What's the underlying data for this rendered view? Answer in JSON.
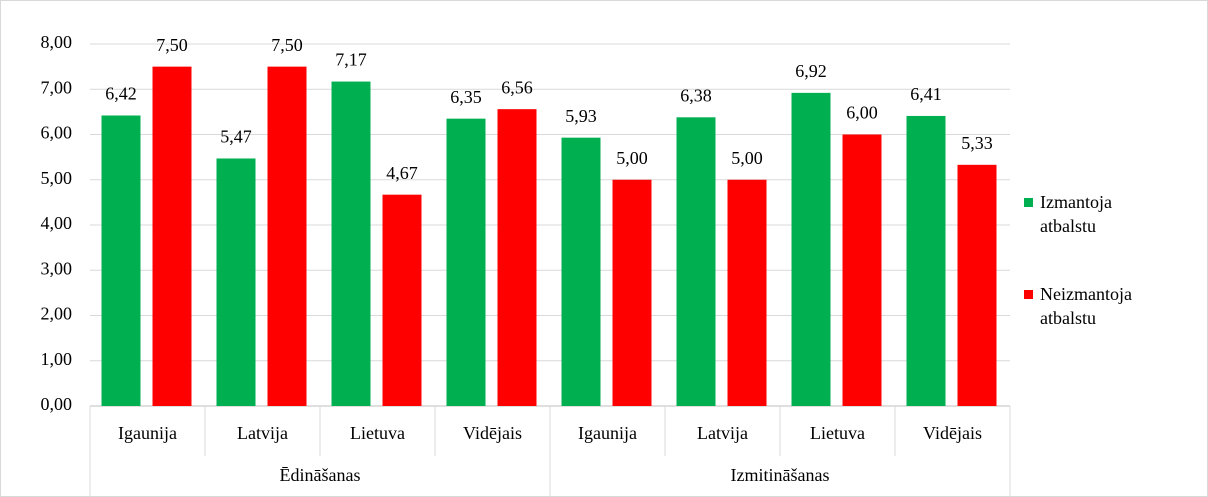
{
  "chart_data": {
    "type": "bar",
    "categories": [
      "Igaunija",
      "Latvija",
      "Lietuva",
      "Vidējais",
      "Igaunija",
      "Latvija",
      "Lietuva",
      "Vidējais"
    ],
    "groups": [
      "Ēdināšanas",
      "Izmitināšanas"
    ],
    "series": [
      {
        "name": "Izmantoja atbalstu",
        "color": "#00b050",
        "values": [
          6.42,
          5.47,
          7.17,
          6.35,
          5.93,
          6.38,
          6.92,
          6.41
        ],
        "value_labels": [
          "6,42",
          "5,47",
          "7,17",
          "6,35",
          "5,93",
          "6,38",
          "6,92",
          "6,41"
        ]
      },
      {
        "name": "Neizmantoja atbalstu",
        "color": "#ff0000",
        "values": [
          7.5,
          7.5,
          4.67,
          6.56,
          5.0,
          5.0,
          6.0,
          5.33
        ],
        "value_labels": [
          "7,50",
          "7,50",
          "4,67",
          "6,56",
          "5,00",
          "5,00",
          "6,00",
          "5,33"
        ]
      }
    ],
    "ylim": [
      0,
      8
    ],
    "yticks": [
      {
        "value": 0,
        "label": "0,00"
      },
      {
        "value": 1,
        "label": "1,00"
      },
      {
        "value": 2,
        "label": "2,00"
      },
      {
        "value": 3,
        "label": "3,00"
      },
      {
        "value": 4,
        "label": "4,00"
      },
      {
        "value": 5,
        "label": "5,00"
      },
      {
        "value": 6,
        "label": "6,00"
      },
      {
        "value": 7,
        "label": "7,00"
      },
      {
        "value": 8,
        "label": "8,00"
      }
    ],
    "grid": true,
    "legend": "right"
  }
}
